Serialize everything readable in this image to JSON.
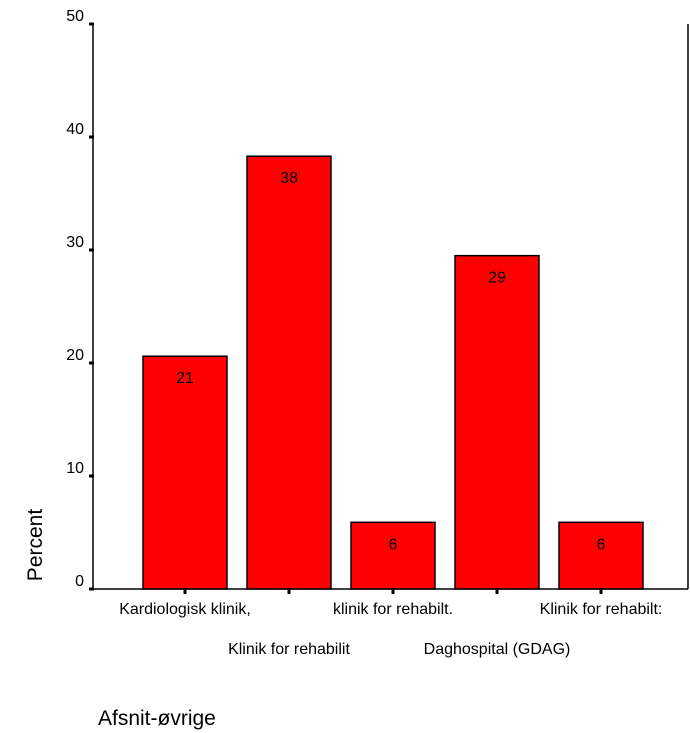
{
  "chart_data": {
    "type": "bar",
    "categories": [
      "Kardiologisk klinik,",
      "Klinik for rehabilit",
      "klinik for rehabilt.",
      "Daghospital (GDAG)",
      "Klinik for rehabilt:"
    ],
    "values": [
      20.6,
      38.3,
      5.9,
      29.5,
      5.9
    ],
    "data_labels": [
      "21",
      "38",
      "6",
      "29",
      "6"
    ],
    "title": "",
    "xlabel": "Afsnit-øvrige",
    "ylabel": "Percent",
    "ylim": [
      0,
      50
    ],
    "yticks": [
      "0",
      "10",
      "20",
      "30",
      "40",
      "50"
    ],
    "bar_color": "#ff0000",
    "grid": false,
    "legend": "none"
  }
}
